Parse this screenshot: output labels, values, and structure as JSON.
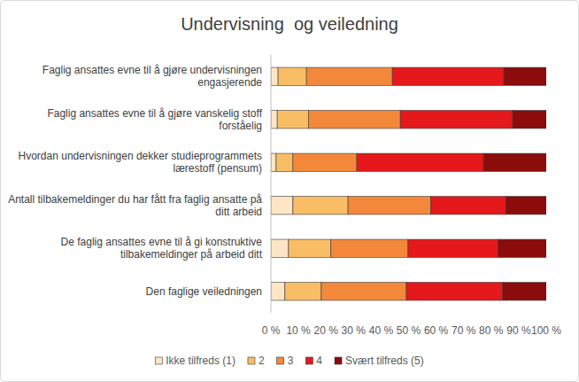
{
  "chart_data": {
    "type": "bar",
    "orientation": "horizontal",
    "stacked": true,
    "title": "Undervisning  og veiledning",
    "categories": [
      "Faglig ansattes evne til å gjøre undervisningen engasjerende",
      "Faglig ansattes evne til å gjøre vanskelig stoff forståelig",
      "Hvordan undervisningen dekker studieprogrammets lærestoff (pensum)",
      "Antall tilbakemeldinger du har fått fra faglig ansatte på ditt arbeid",
      "De faglig ansattes evne til å gi konstruktive tilbakemeldinger på arbeid ditt",
      "Den faglige veiledningen"
    ],
    "series": [
      {
        "name": "Ikke tilfreds (1)",
        "color": "#fde5c6",
        "values": [
          2.6,
          2.3,
          1.9,
          8.0,
          6.4,
          5.1
        ]
      },
      {
        "name": "2",
        "color": "#f9bd66",
        "values": [
          10.3,
          11.3,
          6.1,
          20.0,
          15.4,
          13.2
        ]
      },
      {
        "name": "3",
        "color": "#f3883b",
        "values": [
          31.2,
          33.4,
          23.2,
          30.0,
          28.0,
          30.9
        ]
      },
      {
        "name": "4",
        "color": "#e5181c",
        "values": [
          40.5,
          40.8,
          46.0,
          27.3,
          32.8,
          35.0
        ]
      },
      {
        "name": "Svært tilfreds (5)",
        "color": "#8c0b0b",
        "values": [
          15.4,
          12.2,
          22.8,
          14.7,
          17.4,
          15.8
        ]
      }
    ],
    "xlim": [
      0,
      100
    ],
    "xticks": [
      {
        "value": 0,
        "label": "0 %"
      },
      {
        "value": 10,
        "label": "10 %"
      },
      {
        "value": 20,
        "label": "20 %"
      },
      {
        "value": 30,
        "label": "30 %"
      },
      {
        "value": 40,
        "label": "40 %"
      },
      {
        "value": 50,
        "label": "50 %"
      },
      {
        "value": 60,
        "label": "60 %"
      },
      {
        "value": 70,
        "label": "70 %"
      },
      {
        "value": 80,
        "label": "80 %"
      },
      {
        "value": 90,
        "label": "90 %"
      },
      {
        "value": 100,
        "label": "100 %"
      }
    ],
    "grid": false,
    "legend": "bottom"
  }
}
